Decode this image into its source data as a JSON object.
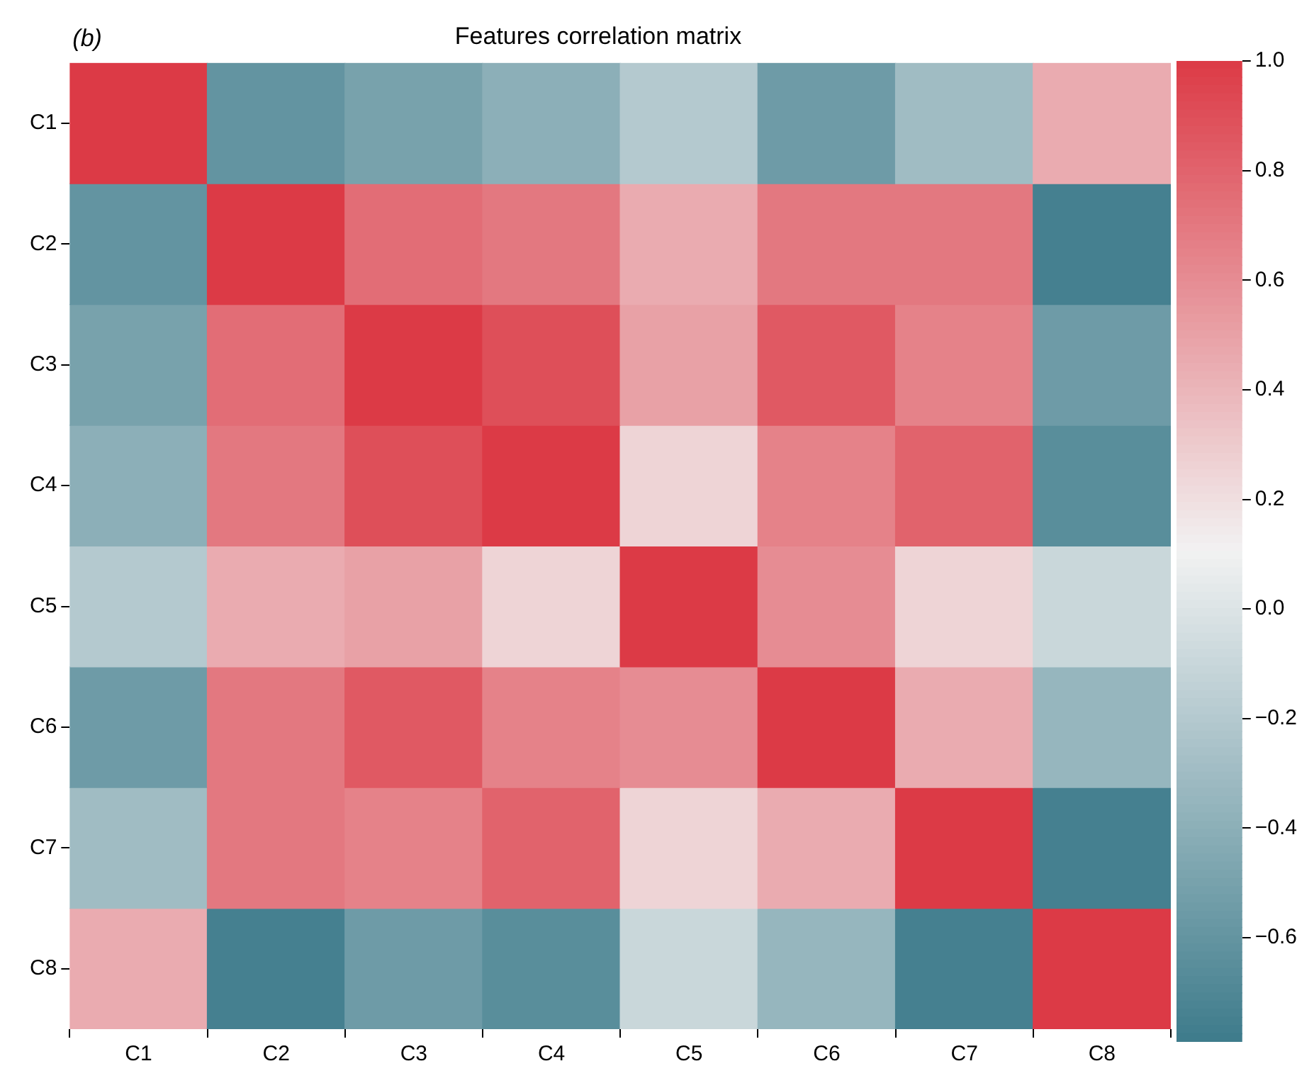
{
  "chart_data": {
    "type": "heatmap",
    "title": "Features correlation matrix",
    "annotations": [
      "(b)"
    ],
    "categories": [
      "C1",
      "C2",
      "C3",
      "C4",
      "C5",
      "C6",
      "C7",
      "C8"
    ],
    "y_categories": [
      "C1",
      "C2",
      "C3",
      "C4",
      "C5",
      "C6",
      "C7",
      "C8"
    ],
    "cells": [
      [
        1.0,
        -0.6,
        -0.5,
        -0.4,
        -0.2,
        -0.55,
        -0.3,
        0.45
      ],
      [
        -0.6,
        1.0,
        0.75,
        0.7,
        0.45,
        0.7,
        0.7,
        -0.75
      ],
      [
        -0.5,
        0.75,
        1.0,
        0.9,
        0.5,
        0.85,
        0.65,
        -0.55
      ],
      [
        -0.4,
        0.7,
        0.9,
        1.0,
        0.25,
        0.65,
        0.8,
        -0.65
      ],
      [
        -0.2,
        0.45,
        0.5,
        0.25,
        1.0,
        0.6,
        0.25,
        -0.1
      ],
      [
        -0.55,
        0.7,
        0.85,
        0.65,
        0.6,
        1.0,
        0.45,
        -0.35
      ],
      [
        -0.3,
        0.7,
        0.65,
        0.8,
        0.25,
        0.45,
        1.0,
        -0.75
      ],
      [
        0.45,
        -0.75,
        -0.55,
        -0.65,
        -0.1,
        -0.35,
        -0.75,
        1.0
      ]
    ],
    "clim": [
      -0.79,
      1.0
    ],
    "cticks": [
      {
        "value": -0.6,
        "label": "−0.6"
      },
      {
        "value": -0.4,
        "label": "−0.4"
      },
      {
        "value": -0.2,
        "label": "−0.2"
      },
      {
        "value": 0,
        "label": "0.0"
      },
      {
        "value": 0.2,
        "label": "0.2"
      },
      {
        "value": 0.4,
        "label": "0.4"
      },
      {
        "value": 0.6,
        "label": "0.6"
      },
      {
        "value": 0.8,
        "label": "0.8"
      },
      {
        "value": 1,
        "label": "1.0"
      }
    ]
  }
}
